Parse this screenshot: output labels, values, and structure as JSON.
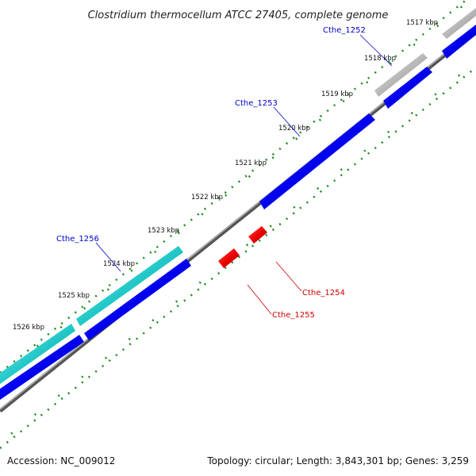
{
  "title": "Clostridium thermocellum ATCC 27405, complete genome",
  "footer": {
    "accession": "Accession: NC_009012",
    "summary": "Topology: circular; Length: 3,843,301 bp; Genes: 3,259"
  },
  "scale": {
    "unit": "kbp",
    "ticks": [
      {
        "label": "1517 kbp"
      },
      {
        "label": "1518 kbp"
      },
      {
        "label": "1519 kbp"
      },
      {
        "label": "1520 kbp"
      },
      {
        "label": "1521 kbp"
      },
      {
        "label": "1522 kbp"
      },
      {
        "label": "1523 kbp"
      },
      {
        "label": "1524 kbp"
      },
      {
        "label": "1525 kbp"
      },
      {
        "label": "1526 kbp"
      }
    ]
  },
  "genes": [
    {
      "name": "Cthe_1252",
      "strand": "forward",
      "color": "#0000ee"
    },
    {
      "name": "Cthe_1253",
      "strand": "forward",
      "color": "#0000ee"
    },
    {
      "name": "Cthe_1254",
      "strand": "reverse",
      "color": "#ee0000"
    },
    {
      "name": "Cthe_1255",
      "strand": "reverse",
      "color": "#ee0000"
    },
    {
      "name": "Cthe_1256",
      "strand": "forward",
      "color": "#0000ee"
    }
  ],
  "colors": {
    "cds": "#0000ee",
    "cds_reverse": "#ee0000",
    "feature_grey": "#b0b0b0",
    "feature_cyan": "#22c8c8",
    "backbone": "#888888",
    "gc_dots": "#1a8a1a",
    "forward_label": "#0000cc",
    "reverse_label": "#cc0000"
  }
}
